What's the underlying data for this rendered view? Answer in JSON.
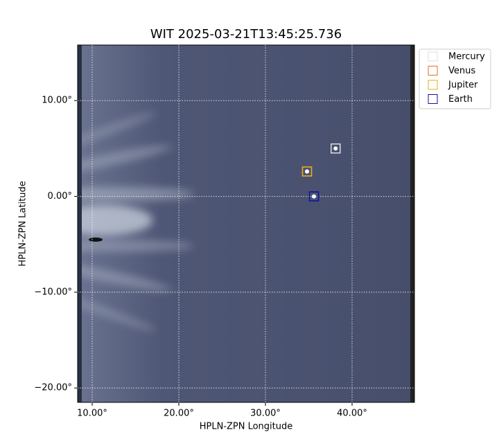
{
  "chart_data": {
    "type": "scatter",
    "title": "WIT 2025-03-21T13:45:25.736",
    "x_label": "HPLN-ZPN Longitude",
    "y_label": "HPLN-ZPN Latitude",
    "xlim": [
      8.32,
      47.2
    ],
    "ylim": [
      -21.5,
      15.8
    ],
    "xticks": [
      {
        "value": 10,
        "label": "10.00°"
      },
      {
        "value": 20,
        "label": "20.00°"
      },
      {
        "value": 30,
        "label": "30.00°"
      },
      {
        "value": 40,
        "label": "40.00°"
      }
    ],
    "yticks": [
      {
        "value": -20,
        "label": "−20.00°"
      },
      {
        "value": -10,
        "label": "−10.00°"
      },
      {
        "value": 0,
        "label": "0.00°"
      },
      {
        "value": 10,
        "label": "10.00°"
      }
    ],
    "grid": true,
    "legend": "outside upper right",
    "series": [
      {
        "name": "Mercury",
        "color": "#dddddd",
        "x": [
          38.1
        ],
        "values": [
          5.0
        ]
      },
      {
        "name": "Venus",
        "color": "#e07020",
        "x": [
          34.8
        ],
        "values": [
          2.6
        ]
      },
      {
        "name": "Jupiter",
        "color": "#e0b020",
        "x": [
          34.8
        ],
        "values": [
          2.6
        ]
      },
      {
        "name": "Earth",
        "color": "#1010a0",
        "x": [
          35.6
        ],
        "values": [
          0.0
        ]
      }
    ]
  }
}
